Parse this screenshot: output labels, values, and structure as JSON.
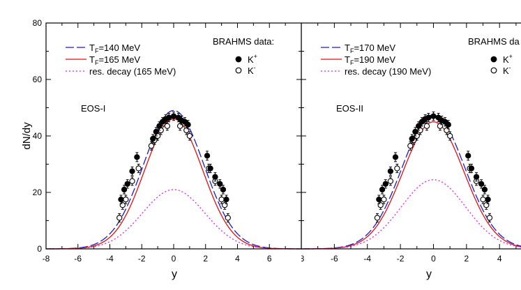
{
  "chart_data": [
    {
      "type": "line",
      "annotation": "EOS-I",
      "xlabel": "y",
      "ylabel": "dN/dy",
      "xlim": [
        -8,
        8
      ],
      "ylim": [
        0,
        80
      ],
      "x_ticks": [
        "-8",
        "-6",
        "-4",
        "-2",
        "0",
        "2",
        "4",
        "6"
      ],
      "y_ticks": [
        "0",
        "20",
        "40",
        "60",
        "80"
      ],
      "data_title": "BRAHMS data:",
      "data_legend": [
        {
          "name_base": "K",
          "name_sup": "+",
          "marker": "filled-circle"
        },
        {
          "name_base": "K",
          "name_sup": "-",
          "marker": "open-circle"
        }
      ],
      "series": [
        {
          "label_pre": "T",
          "label_sub": "F",
          "label_post": "=140 MeV",
          "color": "#1a1acc",
          "dash": "long-dash",
          "peak": 49,
          "sigma": 1.9
        },
        {
          "label_pre": "T",
          "label_sub": "F",
          "label_post": "=165 MeV",
          "color": "#e01010",
          "dash": "solid",
          "peak": 46,
          "sigma": 1.82
        },
        {
          "label_pre": "",
          "label_sub": "",
          "label_post": "res. decay (165 MeV)",
          "color": "#e020e0",
          "dash": "dotted",
          "peak": 21,
          "sigma": 1.95
        }
      ],
      "kplus": [
        {
          "x": -3.3,
          "y": 17.5,
          "e": 1.5
        },
        {
          "x": -3.1,
          "y": 21,
          "e": 1.5
        },
        {
          "x": -2.9,
          "y": 23,
          "e": 1.5
        },
        {
          "x": -2.6,
          "y": 27.5,
          "e": 1.5
        },
        {
          "x": -2.3,
          "y": 32.5,
          "e": 1.6
        },
        {
          "x": -1.3,
          "y": 39,
          "e": 1.5
        },
        {
          "x": -1.1,
          "y": 41.5,
          "e": 1.5
        },
        {
          "x": -0.9,
          "y": 43.5,
          "e": 1.5
        },
        {
          "x": -0.7,
          "y": 45,
          "e": 1.5
        },
        {
          "x": -0.5,
          "y": 46,
          "e": 1.5
        },
        {
          "x": -0.3,
          "y": 46.5,
          "e": 1.5
        },
        {
          "x": 0.0,
          "y": 47,
          "e": 1.5
        },
        {
          "x": 0.3,
          "y": 46.5,
          "e": 1.5
        },
        {
          "x": 0.5,
          "y": 45.5,
          "e": 1.5
        },
        {
          "x": 0.7,
          "y": 45,
          "e": 1.5
        },
        {
          "x": 0.9,
          "y": 44,
          "e": 1.5
        },
        {
          "x": 2.1,
          "y": 33,
          "e": 1.6
        },
        {
          "x": 2.3,
          "y": 28.5,
          "e": 1.5
        },
        {
          "x": 2.6,
          "y": 25.5,
          "e": 1.5
        },
        {
          "x": 2.9,
          "y": 23,
          "e": 1.5
        },
        {
          "x": 3.1,
          "y": 21,
          "e": 1.5
        },
        {
          "x": 3.3,
          "y": 17.5,
          "e": 1.5
        }
      ],
      "kminus": [
        {
          "x": -3.4,
          "y": 11,
          "e": 1.5
        },
        {
          "x": -3.2,
          "y": 15.5,
          "e": 1.5
        },
        {
          "x": -3.0,
          "y": 17.5,
          "e": 1.5
        },
        {
          "x": -2.6,
          "y": 24,
          "e": 1.5
        },
        {
          "x": -2.2,
          "y": 28.5,
          "e": 1.5
        },
        {
          "x": -1.4,
          "y": 36.5,
          "e": 1.5
        },
        {
          "x": -1.2,
          "y": 38.5,
          "e": 1.5
        },
        {
          "x": -1.0,
          "y": 40,
          "e": 1.5
        },
        {
          "x": -0.8,
          "y": 42,
          "e": 1.5
        },
        {
          "x": -0.4,
          "y": 43.5,
          "e": 1.5
        },
        {
          "x": 0.4,
          "y": 43.5,
          "e": 1.5
        },
        {
          "x": 0.8,
          "y": 42,
          "e": 1.5
        },
        {
          "x": 1.0,
          "y": 40,
          "e": 1.5
        },
        {
          "x": 2.2,
          "y": 28.5,
          "e": 1.5
        },
        {
          "x": 2.6,
          "y": 24,
          "e": 1.5
        },
        {
          "x": 3.0,
          "y": 17.5,
          "e": 1.5
        },
        {
          "x": 3.2,
          "y": 15.5,
          "e": 1.5
        },
        {
          "x": 3.4,
          "y": 11,
          "e": 1.5
        }
      ]
    },
    {
      "type": "line",
      "annotation": "EOS-II",
      "xlabel": "y",
      "ylabel": "",
      "xlim": [
        -8,
        5.3
      ],
      "ylim": [
        0,
        80
      ],
      "x_ticks": [
        "8",
        "-6",
        "-4",
        "-2",
        "0",
        "2",
        "4"
      ],
      "y_ticks": [],
      "data_title": "BRAHMS da",
      "data_legend": [
        {
          "name_base": "K",
          "name_sup": "+",
          "marker": "filled-circle"
        },
        {
          "name_base": "K",
          "name_sup": "-",
          "marker": "open-circle"
        }
      ],
      "series": [
        {
          "label_pre": "T",
          "label_sub": "F",
          "label_post": "=170 MeV",
          "color": "#1a1acc",
          "dash": "long-dash",
          "peak": 47.5,
          "sigma": 1.9
        },
        {
          "label_pre": "T",
          "label_sub": "F",
          "label_post": "=190 MeV",
          "color": "#e01010",
          "dash": "solid",
          "peak": 45,
          "sigma": 1.85
        },
        {
          "label_pre": "",
          "label_sub": "",
          "label_post": "res. decay (190 MeV)",
          "color": "#e020e0",
          "dash": "dotted",
          "peak": 24.5,
          "sigma": 1.95
        }
      ],
      "kplus": [
        {
          "x": -3.3,
          "y": 17.5,
          "e": 1.5
        },
        {
          "x": -3.1,
          "y": 21,
          "e": 1.5
        },
        {
          "x": -2.9,
          "y": 23,
          "e": 1.5
        },
        {
          "x": -2.6,
          "y": 27.5,
          "e": 1.5
        },
        {
          "x": -2.3,
          "y": 32.5,
          "e": 1.6
        },
        {
          "x": -1.3,
          "y": 39,
          "e": 1.5
        },
        {
          "x": -1.1,
          "y": 41.5,
          "e": 1.5
        },
        {
          "x": -0.9,
          "y": 43.5,
          "e": 1.5
        },
        {
          "x": -0.7,
          "y": 45,
          "e": 1.5
        },
        {
          "x": -0.5,
          "y": 46,
          "e": 1.5
        },
        {
          "x": -0.3,
          "y": 46.5,
          "e": 1.5
        },
        {
          "x": 0.0,
          "y": 47,
          "e": 1.5
        },
        {
          "x": 0.3,
          "y": 46.5,
          "e": 1.5
        },
        {
          "x": 0.5,
          "y": 45.5,
          "e": 1.5
        },
        {
          "x": 0.7,
          "y": 45,
          "e": 1.5
        },
        {
          "x": 0.9,
          "y": 44,
          "e": 1.5
        },
        {
          "x": 2.1,
          "y": 33,
          "e": 1.6
        },
        {
          "x": 2.3,
          "y": 28.5,
          "e": 1.5
        },
        {
          "x": 2.6,
          "y": 25.5,
          "e": 1.5
        },
        {
          "x": 2.9,
          "y": 23,
          "e": 1.5
        },
        {
          "x": 3.1,
          "y": 21,
          "e": 1.5
        },
        {
          "x": 3.3,
          "y": 17.5,
          "e": 1.5
        }
      ],
      "kminus": [
        {
          "x": -3.4,
          "y": 11,
          "e": 1.5
        },
        {
          "x": -3.2,
          "y": 15.5,
          "e": 1.5
        },
        {
          "x": -3.0,
          "y": 17.5,
          "e": 1.5
        },
        {
          "x": -2.6,
          "y": 24,
          "e": 1.5
        },
        {
          "x": -2.2,
          "y": 28.5,
          "e": 1.5
        },
        {
          "x": -1.4,
          "y": 36.5,
          "e": 1.5
        },
        {
          "x": -1.2,
          "y": 38.5,
          "e": 1.5
        },
        {
          "x": -1.0,
          "y": 40,
          "e": 1.5
        },
        {
          "x": -0.8,
          "y": 42,
          "e": 1.5
        },
        {
          "x": -0.4,
          "y": 43.5,
          "e": 1.5
        },
        {
          "x": 0.4,
          "y": 43.5,
          "e": 1.5
        },
        {
          "x": 0.8,
          "y": 42,
          "e": 1.5
        },
        {
          "x": 1.0,
          "y": 40,
          "e": 1.5
        },
        {
          "x": 2.2,
          "y": 28.5,
          "e": 1.5
        },
        {
          "x": 2.6,
          "y": 24,
          "e": 1.5
        },
        {
          "x": 3.0,
          "y": 17.5,
          "e": 1.5
        },
        {
          "x": 3.2,
          "y": 15.5,
          "e": 1.5
        },
        {
          "x": 3.4,
          "y": 11,
          "e": 1.5
        }
      ]
    }
  ]
}
